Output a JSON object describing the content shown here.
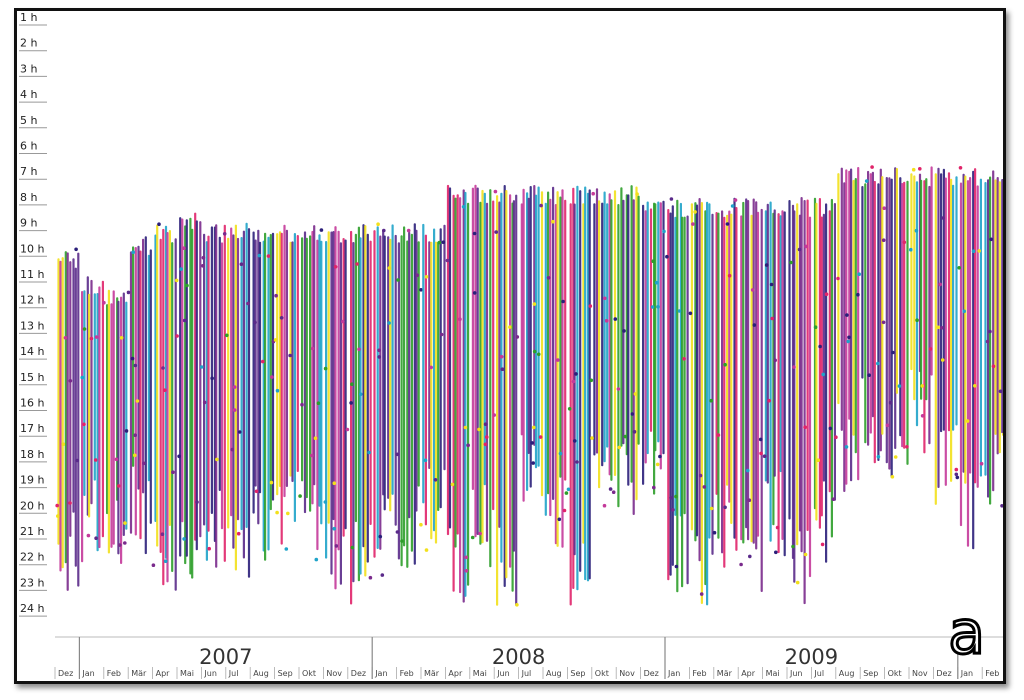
{
  "panel_label": "a",
  "chart_data": {
    "type": "scatter",
    "description_of_axes": "x: days from Dec 2006 to Feb 2010; y: hour of day (1 h at top to 24 h at bottom)",
    "y_ticks": [
      "1 h",
      "2 h",
      "3 h",
      "4 h",
      "5 h",
      "6 h",
      "7 h",
      "8 h",
      "9 h",
      "10 h",
      "11 h",
      "12 h",
      "13 h",
      "14 h",
      "15 h",
      "16 h",
      "17 h",
      "18 h",
      "19 h",
      "20 h",
      "21 h",
      "22 h",
      "23 h",
      "24 h"
    ],
    "ylim": [
      1,
      24
    ],
    "year_labels": [
      "2007",
      "2008",
      "2009"
    ],
    "month_labels": [
      "Dez",
      "Jan",
      "Feb",
      "Mär",
      "Apr",
      "Mai",
      "Jun",
      "Jul",
      "Aug",
      "Sep",
      "Okt",
      "Nov",
      "Dez",
      "Jan",
      "Feb",
      "Mär",
      "Apr",
      "Mai",
      "Jun",
      "Jul",
      "Aug",
      "Sep",
      "Okt",
      "Nov",
      "Dez",
      "Jan",
      "Feb",
      "Mär",
      "Apr",
      "Mai",
      "Jun",
      "Jul",
      "Aug",
      "Sep",
      "Okt",
      "Nov",
      "Dez",
      "Jan",
      "Feb"
    ],
    "colors": [
      "#2b1f7a",
      "#7a2a8c",
      "#e0246a",
      "#f2e01c",
      "#1fa3c9",
      "#2e9e2a",
      "#5a2a8a",
      "#c43a9a"
    ],
    "columns": [
      {
        "month": "Dez 2006",
        "start_h": 10.0,
        "end_h": 23.5
      },
      {
        "month": "Jan 2007",
        "start_h": 11.0,
        "end_h": 22.5
      },
      {
        "month": "Feb 2007",
        "start_h": 11.5,
        "end_h": 23.0
      },
      {
        "month": "Mär 2007",
        "start_h": 9.5,
        "end_h": 22.0
      },
      {
        "month": "Apr 2007",
        "start_h": 9.0,
        "end_h": 24.0
      },
      {
        "month": "Mai 2007",
        "start_h": 8.5,
        "end_h": 23.5
      },
      {
        "month": "Jun 2007",
        "start_h": 9.0,
        "end_h": 22.5
      },
      {
        "month": "Jul 2007",
        "start_h": 9.0,
        "end_h": 23.5
      },
      {
        "month": "Aug 2007",
        "start_h": 9.0,
        "end_h": 22.5
      },
      {
        "month": "Sep 2007",
        "start_h": 9.0,
        "end_h": 22.0
      },
      {
        "month": "Okt 2007",
        "start_h": 9.0,
        "end_h": 22.5
      },
      {
        "month": "Nov 2007",
        "start_h": 9.0,
        "end_h": 23.5
      },
      {
        "month": "Dez 2007",
        "start_h": 9.0,
        "end_h": 24.0
      },
      {
        "month": "Jan 2008",
        "start_h": 9.0,
        "end_h": 23.0
      },
      {
        "month": "Feb 2008",
        "start_h": 9.0,
        "end_h": 22.5
      },
      {
        "month": "Mär 2008",
        "start_h": 9.0,
        "end_h": 22.0
      },
      {
        "month": "Apr 2008",
        "start_h": 7.5,
        "end_h": 24.0
      },
      {
        "month": "Mai 2008",
        "start_h": 7.5,
        "end_h": 22.5
      },
      {
        "month": "Jun 2008",
        "start_h": 7.5,
        "end_h": 24.0
      },
      {
        "month": "Jul 2008",
        "start_h": 7.5,
        "end_h": 20.5
      },
      {
        "month": "Aug 2008",
        "start_h": 7.5,
        "end_h": 22.0
      },
      {
        "month": "Sep 2008",
        "start_h": 7.5,
        "end_h": 24.0
      },
      {
        "month": "Okt 2008",
        "start_h": 7.5,
        "end_h": 21.0
      },
      {
        "month": "Nov 2008",
        "start_h": 7.5,
        "end_h": 21.0
      },
      {
        "month": "Dez 2008",
        "start_h": 8.0,
        "end_h": 20.0
      },
      {
        "month": "Jan 2009",
        "start_h": 8.0,
        "end_h": 23.5
      },
      {
        "month": "Feb 2009",
        "start_h": 8.0,
        "end_h": 24.0
      },
      {
        "month": "Mär 2009",
        "start_h": 8.0,
        "end_h": 22.5
      },
      {
        "month": "Apr 2009",
        "start_h": 8.0,
        "end_h": 23.5
      },
      {
        "month": "Mai 2009",
        "start_h": 8.0,
        "end_h": 22.0
      },
      {
        "month": "Jun 2009",
        "start_h": 8.0,
        "end_h": 24.0
      },
      {
        "month": "Jul 2009",
        "start_h": 8.0,
        "end_h": 22.5
      },
      {
        "month": "Aug 2009",
        "start_h": 6.8,
        "end_h": 19.5
      },
      {
        "month": "Sep 2009",
        "start_h": 6.8,
        "end_h": 18.5
      },
      {
        "month": "Okt 2009",
        "start_h": 6.8,
        "end_h": 19.0
      },
      {
        "month": "Nov 2009",
        "start_h": 6.8,
        "end_h": 18.0
      },
      {
        "month": "Dez 2009",
        "start_h": 6.8,
        "end_h": 20.0
      },
      {
        "month": "Jan 2010",
        "start_h": 6.8,
        "end_h": 22.0
      },
      {
        "month": "Feb 2010",
        "start_h": 6.8,
        "end_h": 20.5
      }
    ],
    "grid": false
  }
}
